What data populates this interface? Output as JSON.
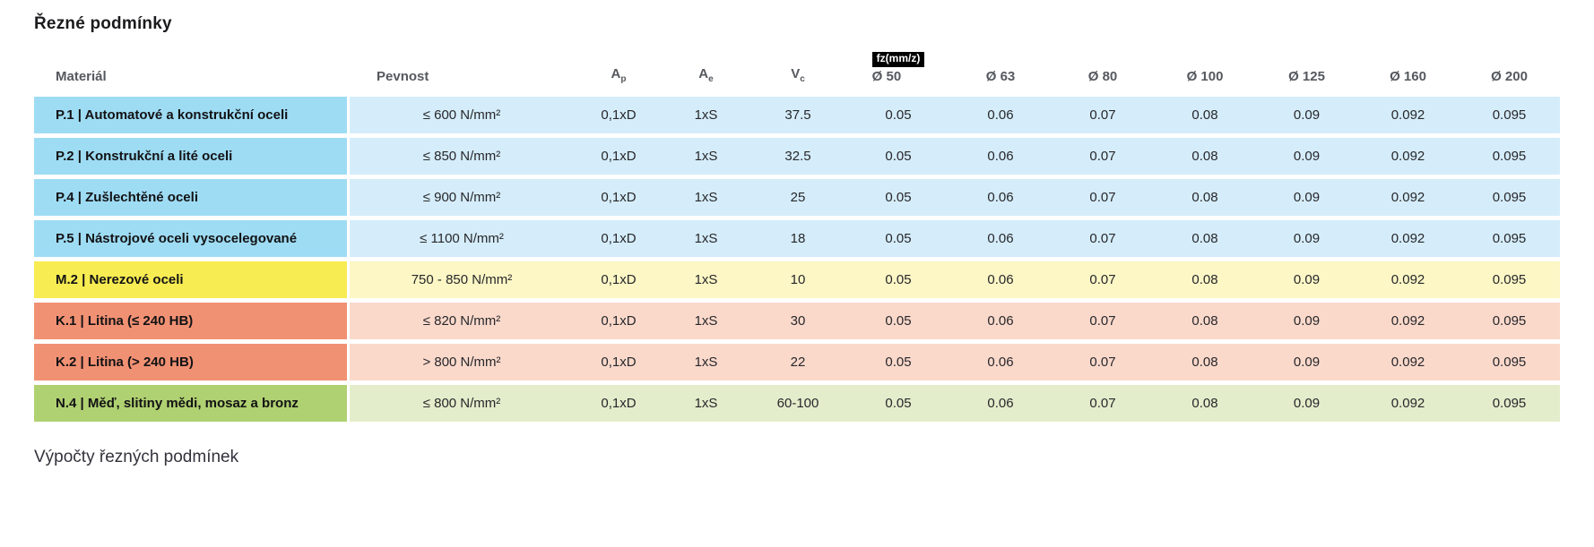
{
  "page": {
    "title": "Řezné podmínky",
    "section_below_title": "Výpočty řezných podmínek"
  },
  "table": {
    "fz_badge": "fz(mm/z)",
    "headers": {
      "material": "Materiál",
      "pevnost": "Pevnost",
      "ap": {
        "base": "A",
        "sub": "p"
      },
      "ae": {
        "base": "A",
        "sub": "e"
      },
      "vc": {
        "base": "V",
        "sub": "c"
      },
      "diameters": [
        "Ø 50",
        "Ø 63",
        "Ø 80",
        "Ø 100",
        "Ø 125",
        "Ø 160",
        "Ø 200"
      ]
    },
    "colors": {
      "blue": {
        "label": "#9EDCF4",
        "light": "#D5EDFA"
      },
      "yellow": {
        "label": "#F7EC52",
        "light": "#FCF7C5"
      },
      "orange": {
        "label": "#F19173",
        "light": "#FAD9CB"
      },
      "green": {
        "label": "#B0D171",
        "light": "#E3EDCB"
      }
    },
    "rows": [
      {
        "color_group": "blue",
        "material": "P.1 | Automatové a konstrukční oceli",
        "pevnost": "≤ 600 N/mm²",
        "ap": "0,1xD",
        "ae": "1xS",
        "vc": "37.5",
        "fz": [
          "0.05",
          "0.06",
          "0.07",
          "0.08",
          "0.09",
          "0.092",
          "0.095"
        ]
      },
      {
        "color_group": "blue",
        "material": "P.2 | Konstrukční a lité oceli",
        "pevnost": "≤ 850 N/mm²",
        "ap": "0,1xD",
        "ae": "1xS",
        "vc": "32.5",
        "fz": [
          "0.05",
          "0.06",
          "0.07",
          "0.08",
          "0.09",
          "0.092",
          "0.095"
        ]
      },
      {
        "color_group": "blue",
        "material": "P.4 | Zušlechtěné oceli",
        "pevnost": "≤ 900 N/mm²",
        "ap": "0,1xD",
        "ae": "1xS",
        "vc": "25",
        "fz": [
          "0.05",
          "0.06",
          "0.07",
          "0.08",
          "0.09",
          "0.092",
          "0.095"
        ]
      },
      {
        "color_group": "blue",
        "material": "P.5 | Nástrojové oceli vysocelegované",
        "pevnost": "≤ 1100 N/mm²",
        "ap": "0,1xD",
        "ae": "1xS",
        "vc": "18",
        "fz": [
          "0.05",
          "0.06",
          "0.07",
          "0.08",
          "0.09",
          "0.092",
          "0.095"
        ]
      },
      {
        "color_group": "yellow",
        "material": "M.2 | Nerezové oceli",
        "pevnost": "750 - 850 N/mm²",
        "ap": "0,1xD",
        "ae": "1xS",
        "vc": "10",
        "fz": [
          "0.05",
          "0.06",
          "0.07",
          "0.08",
          "0.09",
          "0.092",
          "0.095"
        ]
      },
      {
        "color_group": "orange",
        "material": "K.1 | Litina (≤ 240 HB)",
        "pevnost": "≤ 820 N/mm²",
        "ap": "0,1xD",
        "ae": "1xS",
        "vc": "30",
        "fz": [
          "0.05",
          "0.06",
          "0.07",
          "0.08",
          "0.09",
          "0.092",
          "0.095"
        ]
      },
      {
        "color_group": "orange",
        "material": "K.2 | Litina (> 240 HB)",
        "pevnost": "> 800 N/mm²",
        "ap": "0,1xD",
        "ae": "1xS",
        "vc": "22",
        "fz": [
          "0.05",
          "0.06",
          "0.07",
          "0.08",
          "0.09",
          "0.092",
          "0.095"
        ]
      },
      {
        "color_group": "green",
        "material": "N.4 | Měď, slitiny mědi, mosaz a bronz",
        "pevnost": "≤ 800 N/mm²",
        "ap": "0,1xD",
        "ae": "1xS",
        "vc": "60-100",
        "fz": [
          "0.05",
          "0.06",
          "0.07",
          "0.08",
          "0.09",
          "0.092",
          "0.095"
        ]
      }
    ]
  }
}
